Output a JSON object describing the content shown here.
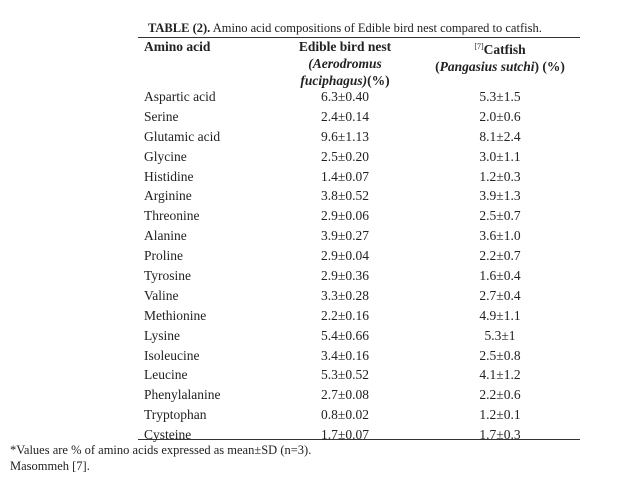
{
  "caption": {
    "label": "TABLE (2).",
    "text": "Amino acid compositions of Edible bird nest compared to catfish."
  },
  "header": {
    "col1": "Amino acid",
    "col2_line1": "Edible bird nest",
    "col2_line2": "(Aerodromus",
    "col2_line3_italic": "fuciphagus)",
    "col2_line3_rest": "(%)",
    "col3_ref": "[7]",
    "col3_line1": "Catfish",
    "col3_line2_open": "(",
    "col3_line2_italic": "Pangasius sutchi",
    "col3_line2_rest": ") (%)"
  },
  "rows": [
    {
      "acid": "Aspartic acid",
      "bird_nest": "6.3±0.40",
      "catfish": "5.3±1.5"
    },
    {
      "acid": "Serine",
      "bird_nest": "2.4±0.14",
      "catfish": "2.0±0.6"
    },
    {
      "acid": "Glutamic acid",
      "bird_nest": "9.6±1.13",
      "catfish": "8.1±2.4"
    },
    {
      "acid": "Glycine",
      "bird_nest": "2.5±0.20",
      "catfish": "3.0±1.1"
    },
    {
      "acid": "Histidine",
      "bird_nest": "1.4±0.07",
      "catfish": "1.2±0.3"
    },
    {
      "acid": "Arginine",
      "bird_nest": "3.8±0.52",
      "catfish": "3.9±1.3"
    },
    {
      "acid": "Threonine",
      "bird_nest": "2.9±0.06",
      "catfish": "2.5±0.7"
    },
    {
      "acid": "Alanine",
      "bird_nest": "3.9±0.27",
      "catfish": "3.6±1.0"
    },
    {
      "acid": "Proline",
      "bird_nest": "2.9±0.04",
      "catfish": "2.2±0.7"
    },
    {
      "acid": "Tyrosine",
      "bird_nest": "2.9±0.36",
      "catfish": "1.6±0.4"
    },
    {
      "acid": "Valine",
      "bird_nest": "3.3±0.28",
      "catfish": "2.7±0.4"
    },
    {
      "acid": "Methionine",
      "bird_nest": "2.2±0.16",
      "catfish": "4.9±1.1"
    },
    {
      "acid": "Lysine",
      "bird_nest": "5.4±0.66",
      "catfish": "5.3±1"
    },
    {
      "acid": "Isoleucine",
      "bird_nest": "3.4±0.16",
      "catfish": "2.5±0.8"
    },
    {
      "acid": "Leucine",
      "bird_nest": "5.3±0.52",
      "catfish": "4.1±1.2"
    },
    {
      "acid": "Phenylalanine",
      "bird_nest": "2.7±0.08",
      "catfish": "2.2±0.6"
    },
    {
      "acid": "Tryptophan",
      "bird_nest": "0.8±0.02",
      "catfish": "1.2±0.1"
    },
    {
      "acid": "Cysteine",
      "bird_nest": "1.7±0.07",
      "catfish": "1.7±0.3"
    }
  ],
  "footnote": {
    "line1": "*Values are % of amino acids expressed as mean±SD (n=3).",
    "line2": "Masommeh [7]."
  }
}
